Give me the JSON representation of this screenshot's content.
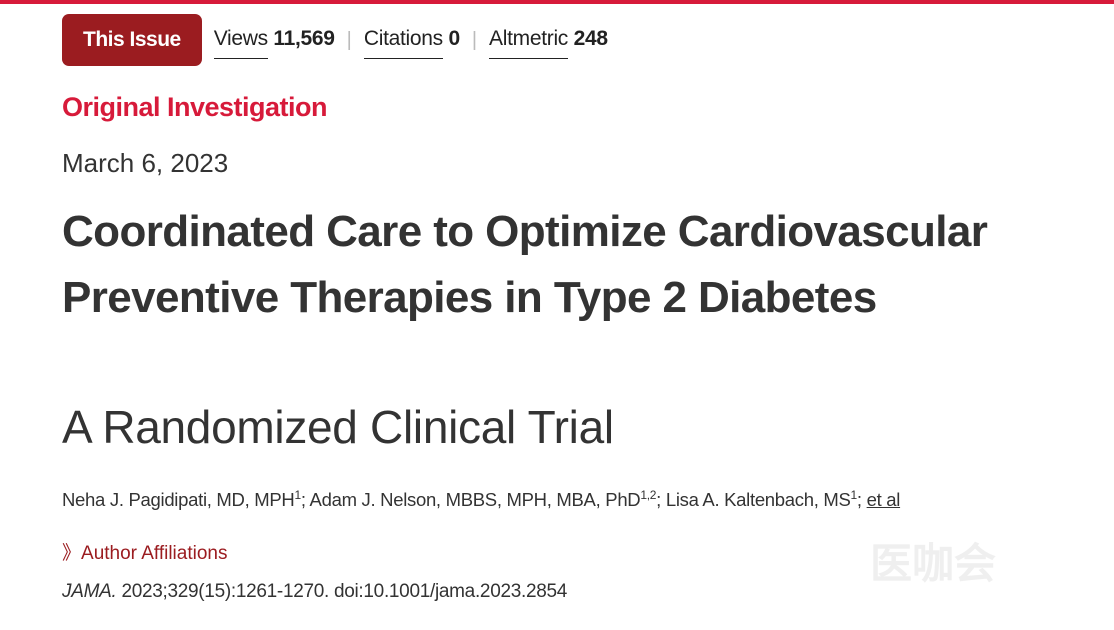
{
  "header": {
    "this_issue_label": "This Issue",
    "metrics": [
      {
        "label": "Views",
        "value": "11,569"
      },
      {
        "label": "Citations",
        "value": "0"
      },
      {
        "label": "Altmetric",
        "value": "248"
      }
    ]
  },
  "article": {
    "type": "Original Investigation",
    "date": "March 6, 2023",
    "title": "Coordinated Care to Optimize Cardiovascular Preventive Therapies in Type 2 Diabetes",
    "subtitle": "A Randomized Clinical Trial",
    "authors": [
      {
        "name": "Neha J. Pagidipati, MD, MPH",
        "aff": "1"
      },
      {
        "name": "Adam J. Nelson, MBBS, MPH, MBA, PhD",
        "aff": "1,2"
      },
      {
        "name": "Lisa A. Kaltenbach, MS",
        "aff": "1"
      }
    ],
    "et_al": "et al",
    "affiliations_label": "Author Affiliations",
    "affiliations_icon": "double-chevron-right-icon",
    "journal": "JAMA.",
    "citation": "2023;329(15):1261-1270. doi:10.1001/jama.2023.2854"
  },
  "watermark": {
    "text": "医咖会"
  },
  "colors": {
    "accent": "#d71a3a",
    "button": "#9b1c20"
  }
}
